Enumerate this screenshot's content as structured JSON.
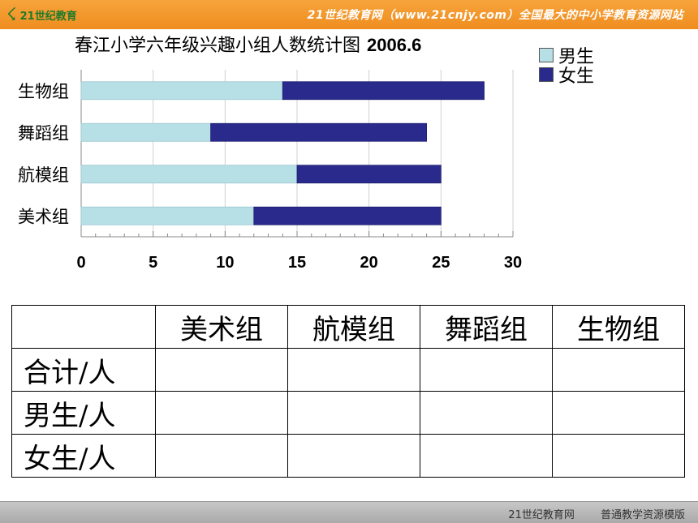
{
  "header": {
    "logo_text": "21世纪教育",
    "tagline": "21世纪教育网（www.21cnjy.com）全国最大的中小学教育资源网站"
  },
  "footer": {
    "left": "21世纪教育网",
    "right": "普通教学资源模版"
  },
  "chart_data": {
    "type": "bar",
    "orientation": "horizontal",
    "stacked": true,
    "title": "春江小学六年级兴趣小组人数统计图",
    "subtitle": "2006.6",
    "categories": [
      "生物组",
      "舞蹈组",
      "航模组",
      "美术组"
    ],
    "series": [
      {
        "name": "男生",
        "values": [
          14,
          9,
          15,
          12
        ],
        "color": "#b7e0e6"
      },
      {
        "name": "女生",
        "values": [
          14,
          15,
          10,
          13
        ],
        "color": "#2a2a8c"
      }
    ],
    "xlim": [
      0,
      30
    ],
    "xticks": [
      "0",
      "5",
      "10",
      "15",
      "20",
      "25",
      "30"
    ],
    "legend": "right",
    "grid": true
  },
  "table": {
    "columns": [
      "",
      "美术组",
      "航模组",
      "舞蹈组",
      "生物组"
    ],
    "rows": [
      {
        "label": "合计/人",
        "cells": [
          "",
          "",
          "",
          ""
        ]
      },
      {
        "label": "男生/人",
        "cells": [
          "",
          "",
          "",
          ""
        ]
      },
      {
        "label": "女生/人",
        "cells": [
          "",
          "",
          "",
          ""
        ]
      }
    ]
  }
}
